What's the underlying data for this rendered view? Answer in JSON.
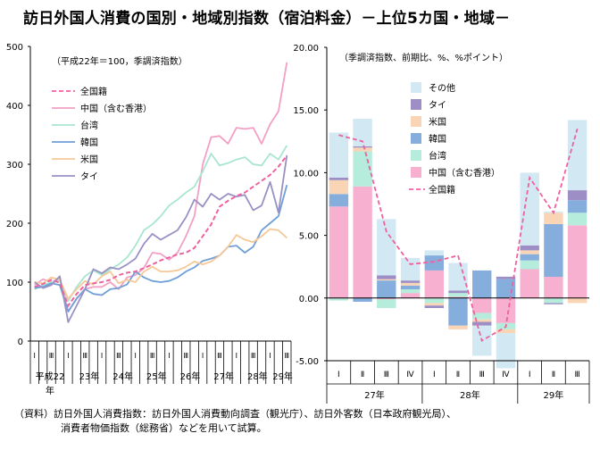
{
  "title": "訪日外国人消費の国別・地域別指数（宿泊料金）－上位5カ国・地域－",
  "footnote": {
    "line1": "（資料）訪日外国人消費指数：訪日外国人消費動向調査（観光庁）、訪日外客数（日本政府観光局）、",
    "line2": "消費者物価指数（総務省）などを用いて試算。"
  },
  "chart_data": [
    {
      "type": "line",
      "subtitle": "（平成22年＝100，季調済指数）",
      "ylim": [
        0,
        500
      ],
      "yticks": [
        "0",
        "100",
        "200",
        "300",
        "400",
        "500"
      ],
      "quarter_ticks": [
        "Ⅰ",
        "Ⅲ",
        "Ⅰ",
        "Ⅲ",
        "Ⅰ",
        "Ⅲ",
        "Ⅰ",
        "Ⅲ",
        "Ⅰ",
        "Ⅲ",
        "Ⅰ",
        "Ⅲ",
        "Ⅰ",
        "Ⅲ",
        "Ⅰ",
        "Ⅲ"
      ],
      "year_labels": [
        "平成22",
        "年",
        "23年",
        "24年",
        "25年",
        "26年",
        "27年",
        "28年",
        "29年"
      ],
      "x_count": 31,
      "series": [
        {
          "name": "全国籍",
          "color": "#f0609e",
          "dash": true,
          "values": [
            92,
            97,
            104,
            99,
            60,
            80,
            95,
            98,
            100,
            104,
            112,
            116,
            118,
            124,
            130,
            137,
            142,
            147,
            150,
            158,
            178,
            198,
            228,
            238,
            246,
            252,
            262,
            272,
            282,
            296,
            315
          ]
        },
        {
          "name": "中国（含む香港）",
          "color": "#f2a0c4",
          "dash": false,
          "values": [
            95,
            105,
            100,
            106,
            50,
            72,
            88,
            92,
            92,
            100,
            88,
            108,
            112,
            124,
            150,
            148,
            138,
            150,
            178,
            212,
            300,
            346,
            348,
            335,
            362,
            360,
            362,
            335,
            368,
            390,
            473
          ]
        },
        {
          "name": "台湾",
          "color": "#a8e6d0",
          "dash": false,
          "values": [
            88,
            95,
            100,
            102,
            68,
            92,
            110,
            120,
            112,
            122,
            130,
            142,
            162,
            188,
            198,
            212,
            230,
            240,
            252,
            262,
            288,
            318,
            298,
            302,
            308,
            312,
            300,
            298,
            318,
            308,
            332
          ]
        },
        {
          "name": "韓国",
          "color": "#6f9fd8",
          "dash": false,
          "values": [
            90,
            92,
            98,
            95,
            50,
            72,
            88,
            80,
            78,
            88,
            90,
            96,
            118,
            108,
            102,
            100,
            102,
            108,
            118,
            125,
            136,
            140,
            145,
            160,
            162,
            150,
            160,
            188,
            200,
            212,
            265
          ]
        },
        {
          "name": "米国",
          "color": "#f5c898",
          "dash": false,
          "values": [
            100,
            98,
            108,
            104,
            72,
            88,
            102,
            96,
            110,
            118,
            98,
            104,
            100,
            118,
            126,
            118,
            118,
            120,
            126,
            135,
            130,
            135,
            145,
            160,
            180,
            172,
            168,
            178,
            190,
            188,
            175
          ]
        },
        {
          "name": "タイ",
          "color": "#9a90c4",
          "dash": false,
          "values": [
            100,
            90,
            95,
            110,
            32,
            60,
            88,
            122,
            115,
            125,
            122,
            130,
            140,
            165,
            182,
            172,
            180,
            188,
            210,
            240,
            228,
            250,
            240,
            250,
            245,
            248,
            222,
            230,
            270,
            218,
            315
          ]
        }
      ]
    },
    {
      "type": "bar",
      "subtitle": "（季調済指数、前期比、%、%ポイント）",
      "ylim": [
        -5,
        20
      ],
      "yticks": [
        "-5.00",
        "0.00",
        "5.00",
        "10.00",
        "15.00",
        "20.00"
      ],
      "categories": [
        "Ⅰ",
        "Ⅱ",
        "Ⅲ",
        "Ⅳ",
        "Ⅰ",
        "Ⅱ",
        "Ⅲ",
        "Ⅳ",
        "Ⅰ",
        "Ⅱ",
        "Ⅲ"
      ],
      "year_labels": [
        "27年",
        "28年",
        "29年"
      ],
      "stack_order": [
        "中国（含む香港）",
        "台湾",
        "韓国",
        "米国",
        "タイ",
        "その他"
      ],
      "series": [
        {
          "name": "その他",
          "color": "#d2e9f3",
          "values": [
            3.6,
            2.2,
            4.5,
            1.8,
            0.4,
            2.2,
            -2.4,
            -2.8,
            5.8,
            0.1,
            5.6
          ]
        },
        {
          "name": "タイ",
          "color": "#9d8fc6",
          "values": [
            0.2,
            0.1,
            0.3,
            0.2,
            -0.2,
            0.2,
            -0.3,
            0.2,
            0.4,
            -0.1,
            0.8
          ]
        },
        {
          "name": "米国",
          "color": "#fad5b5",
          "values": [
            1.1,
            0.3,
            0.1,
            0.2,
            -0.2,
            -0.3,
            -0.2,
            -0.3,
            0.3,
            0.9,
            -0.4
          ]
        },
        {
          "name": "韓国",
          "color": "#86aedd",
          "values": [
            1.0,
            -0.3,
            1.4,
            0.3,
            1.2,
            -2.2,
            2.2,
            1.5,
            0.5,
            4.2,
            1.0
          ]
        },
        {
          "name": "台湾",
          "color": "#b5ecdb",
          "values": [
            -0.2,
            2.8,
            -0.7,
            0.3,
            -0.4,
            0.3,
            -0.5,
            -0.5,
            0.7,
            -0.4,
            1.0
          ]
        },
        {
          "name": "中国（含む香港）",
          "color": "#f7b0d0",
          "values": [
            7.3,
            8.9,
            -0.1,
            0.4,
            2.2,
            0.1,
            -1.2,
            -2.0,
            2.3,
            1.7,
            5.8
          ]
        }
      ],
      "line": {
        "name": "全国籍",
        "color": "#f0609e",
        "values": [
          13.0,
          12.5,
          5.3,
          2.7,
          2.9,
          3.4,
          -3.4,
          -2.3,
          9.6,
          6.8,
          13.5
        ]
      }
    }
  ]
}
